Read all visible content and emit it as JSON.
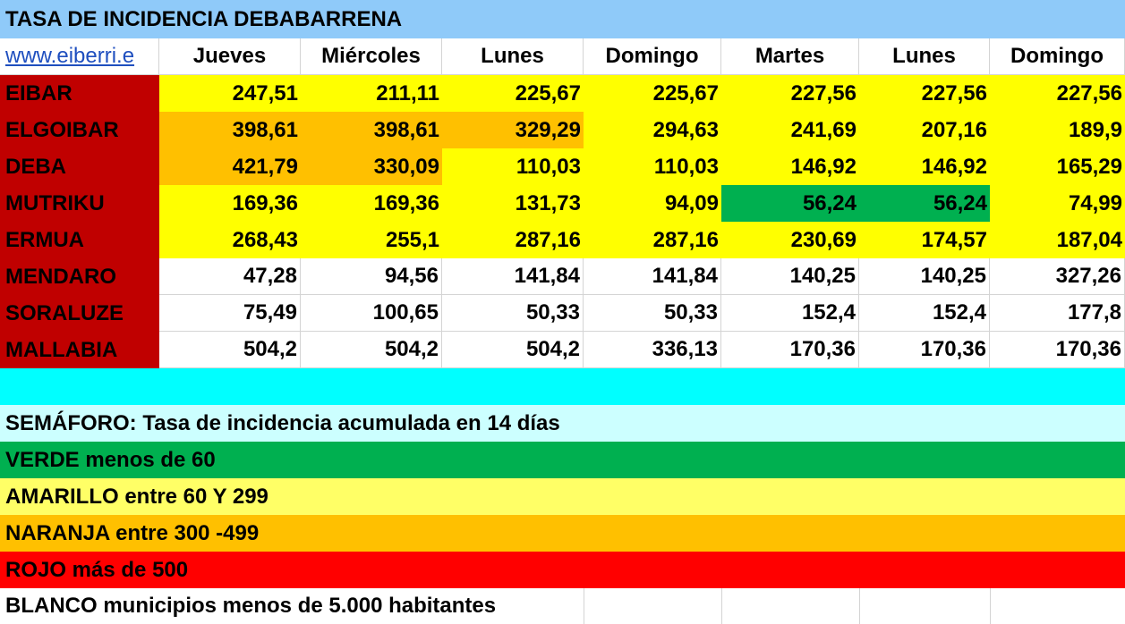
{
  "title": "TASA DE INCIDENCIA DEBABARRENA",
  "website": "www.eiberri.e",
  "days": [
    "Jueves",
    "Miércoles",
    "Lunes",
    "Domingo",
    "Martes",
    "Lunes",
    "Domingo"
  ],
  "colors": {
    "title_bg": "#8fcaf9",
    "name_bg": "#c00000",
    "yellow": "#ffff00",
    "orange": "#ffc000",
    "green": "#00b050",
    "cyan": "#00ffff",
    "light_cyan": "#ccffff",
    "light_yellow": "#ffff66",
    "red": "#ff0000",
    "white": "#ffffff"
  },
  "rows": [
    {
      "name": "EIBAR",
      "values": [
        "247,51",
        "211,11",
        "225,67",
        "225,67",
        "227,56",
        "227,56",
        "227,56"
      ],
      "colors": [
        "yellow",
        "yellow",
        "yellow",
        "yellow",
        "yellow",
        "yellow",
        "yellow"
      ]
    },
    {
      "name": "ELGOIBAR",
      "values": [
        "398,61",
        "398,61",
        "329,29",
        "294,63",
        "241,69",
        "207,16",
        "189,9"
      ],
      "colors": [
        "orange",
        "orange",
        "orange",
        "yellow",
        "yellow",
        "yellow",
        "yellow"
      ]
    },
    {
      "name": "DEBA",
      "values": [
        "421,79",
        "330,09",
        "110,03",
        "110,03",
        "146,92",
        "146,92",
        "165,29"
      ],
      "colors": [
        "orange",
        "orange",
        "yellow",
        "yellow",
        "yellow",
        "yellow",
        "yellow"
      ]
    },
    {
      "name": "MUTRIKU",
      "values": [
        "169,36",
        "169,36",
        "131,73",
        "94,09",
        "56,24",
        "56,24",
        "74,99"
      ],
      "colors": [
        "yellow",
        "yellow",
        "yellow",
        "yellow",
        "green",
        "green",
        "yellow"
      ]
    },
    {
      "name": "ERMUA",
      "values": [
        "268,43",
        "255,1",
        "287,16",
        "287,16",
        "230,69",
        "174,57",
        "187,04"
      ],
      "colors": [
        "yellow",
        "yellow",
        "yellow",
        "yellow",
        "yellow",
        "yellow",
        "yellow"
      ]
    },
    {
      "name": "MENDARO",
      "values": [
        "47,28",
        "94,56",
        "141,84",
        "141,84",
        "140,25",
        "140,25",
        "327,26"
      ],
      "colors": [
        "white",
        "white",
        "white",
        "white",
        "white",
        "white",
        "white"
      ]
    },
    {
      "name": "SORALUZE",
      "values": [
        "75,49",
        "100,65",
        "50,33",
        "50,33",
        "152,4",
        "152,4",
        "177,8"
      ],
      "colors": [
        "white",
        "white",
        "white",
        "white",
        "white",
        "white",
        "white"
      ]
    },
    {
      "name": "MALLABIA",
      "values": [
        "504,2",
        "504,2",
        "504,2",
        "336,13",
        "170,36",
        "170,36",
        "170,36"
      ],
      "colors": [
        "white",
        "white",
        "white",
        "white",
        "white",
        "white",
        "white"
      ]
    }
  ],
  "legend": [
    {
      "text": "",
      "color": "cyan"
    },
    {
      "text": "SEMÁFORO:  Tasa de incidencia acumulada en 14 días",
      "color": "light_cyan"
    },
    {
      "text": "VERDE menos de 60",
      "color": "green"
    },
    {
      "text": "AMARILLO entre 60 Y 299",
      "color": "light_yellow"
    },
    {
      "text": "NARANJA entre 300 -499",
      "color": "orange"
    },
    {
      "text": "ROJO más de 500",
      "color": "red"
    },
    {
      "text": "BLANCO municipios menos de 5.000 habitantes",
      "color": "white"
    }
  ]
}
